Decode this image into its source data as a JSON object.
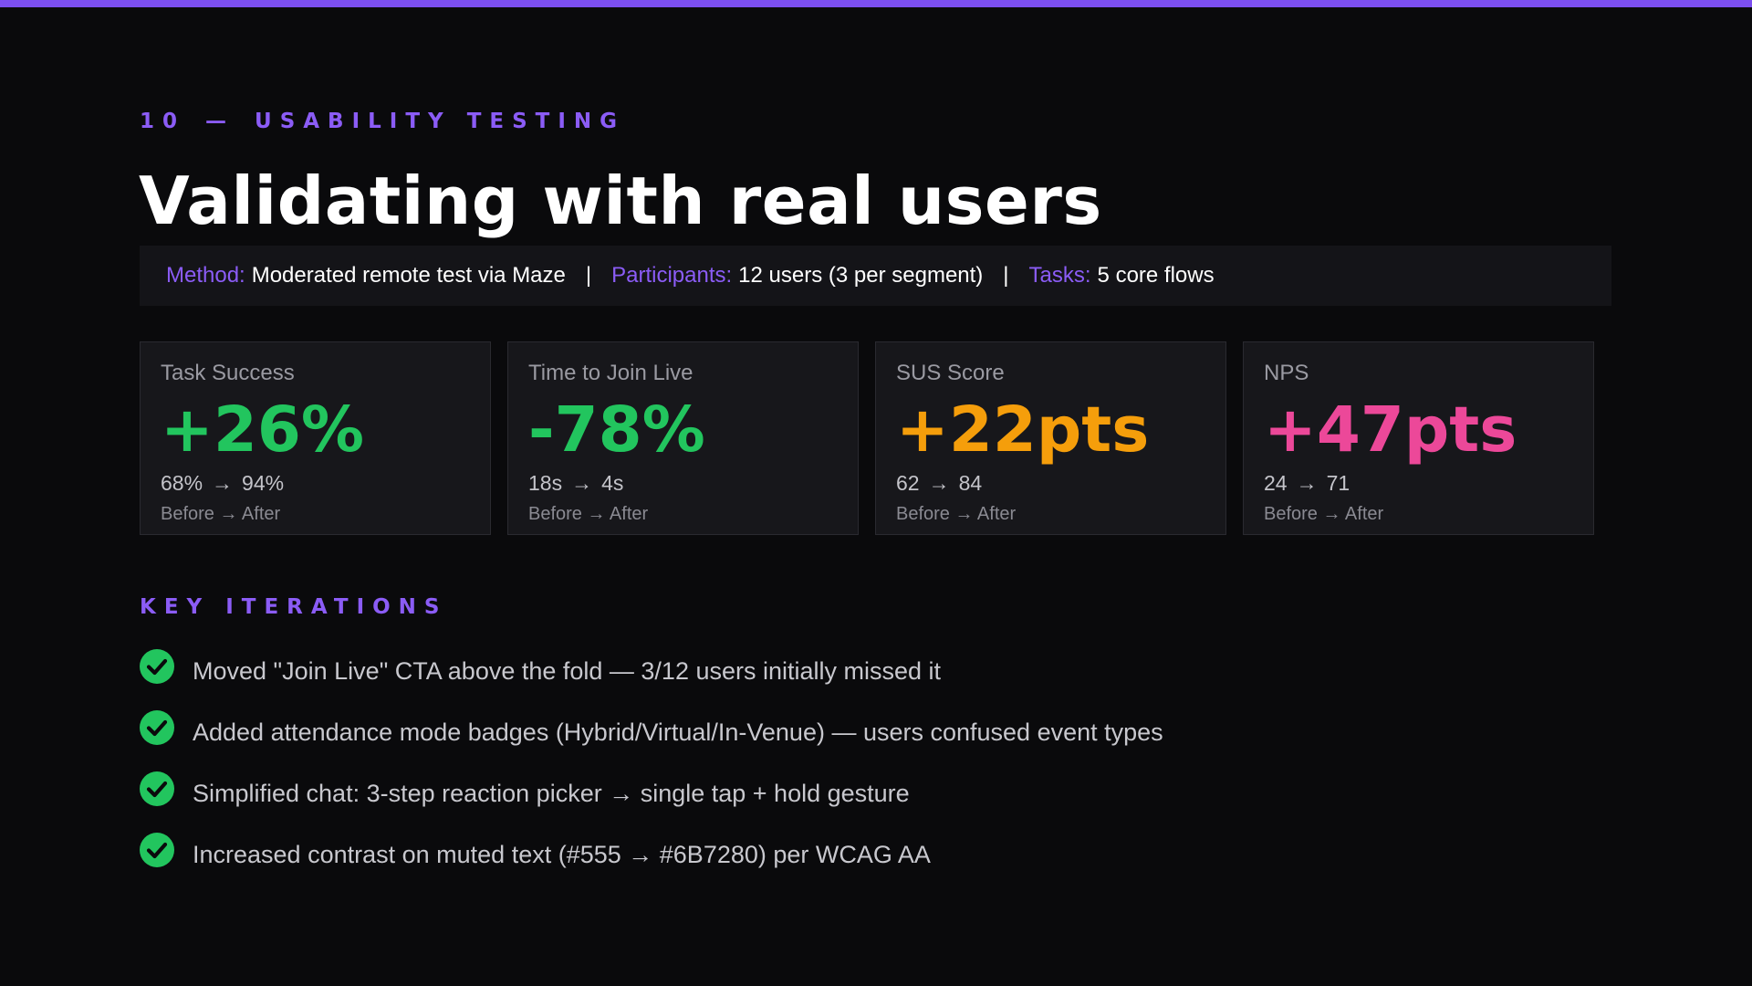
{
  "colors": {
    "accent": "#8b5cf6",
    "accent_bar": "#7c4ff0",
    "green": "#22c55e",
    "orange": "#f59e0b",
    "pink": "#ec4899",
    "background": "#0a0a0c"
  },
  "eyebrow": {
    "number": "10",
    "dash": "—",
    "label": "USABILITY TESTING"
  },
  "title": "Validating with real users",
  "method_bar": {
    "method_label": "Method:",
    "method_value": "Moderated remote test via Maze",
    "separator": "|",
    "participants_label": "Participants:",
    "participants_value": "12 users (3 per segment)",
    "tasks_label": "Tasks:",
    "tasks_value": "5 core flows"
  },
  "stats": [
    {
      "label": "Task Success",
      "value": "+26%",
      "color": "#22c55e",
      "before": "68%",
      "arrow": "→",
      "after": "94%",
      "note": "Before → After"
    },
    {
      "label": "Time to Join Live",
      "value": "-78%",
      "color": "#22c55e",
      "before": "18s",
      "arrow": "→",
      "after": "4s",
      "note": "Before → After"
    },
    {
      "label": "SUS Score",
      "value": "+22pts",
      "color": "#f59e0b",
      "before": "62",
      "arrow": "→",
      "after": "84",
      "note": "Before → After"
    },
    {
      "label": "NPS",
      "value": "+47pts",
      "color": "#ec4899",
      "before": "24",
      "arrow": "→",
      "after": "71",
      "note": "Before → After"
    }
  ],
  "key_iterations": {
    "title": "KEY ITERATIONS",
    "icon": "check-circle-icon",
    "items": [
      "Moved \"Join Live\" CTA above the fold — 3/12 users initially missed it",
      "Added attendance mode badges (Hybrid/Virtual/In-Venue) — users confused event types",
      "Simplified chat: 3-step reaction picker → single tap + hold gesture",
      "Increased contrast on muted text (#555 → #6B7280) per WCAG AA"
    ]
  }
}
